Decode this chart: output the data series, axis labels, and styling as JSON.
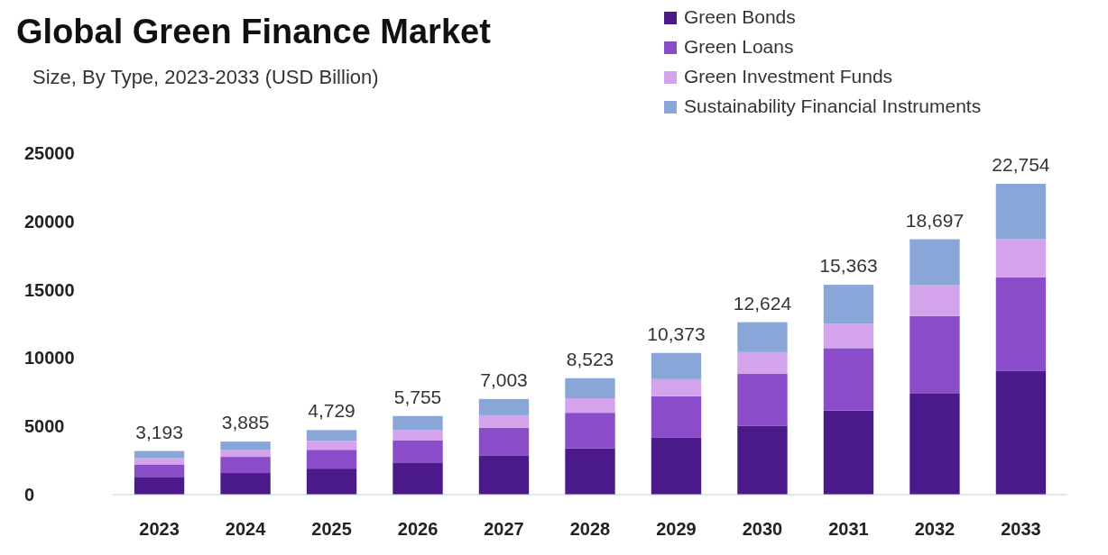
{
  "chart_data": {
    "type": "bar",
    "title": "Global Green Finance Market",
    "subtitle": "Size, By Type, 2023-2033 (USD Billion)",
    "categories": [
      "2023",
      "2024",
      "2025",
      "2026",
      "2027",
      "2028",
      "2029",
      "2030",
      "2031",
      "2032",
      "2033"
    ],
    "stacked": true,
    "legend": "top right",
    "grid": false,
    "ylim": [
      0,
      25000
    ],
    "yticks": [
      0,
      5000,
      10000,
      15000,
      20000,
      25000
    ],
    "totals": [
      "3,193",
      "3,885",
      "4,729",
      "5,755",
      "7,003",
      "8,523",
      "10,373",
      "12,624",
      "15,363",
      "18,697",
      "22,754"
    ],
    "series": [
      {
        "name": "Green Bonds",
        "color": "#4b1a8a",
        "values": [
          1303,
          1581,
          1904,
          2354,
          2841,
          3396,
          4162,
          5050,
          6158,
          7434,
          9080
        ]
      },
      {
        "name": "Green Loans",
        "color": "#8a4cc9",
        "values": [
          912,
          1185,
          1379,
          1635,
          2048,
          2596,
          3040,
          3787,
          4569,
          5642,
          6827
        ]
      },
      {
        "name": "Green Investment Funds",
        "color": "#d3a4ec",
        "values": [
          457,
          527,
          657,
          720,
          925,
          1066,
          1255,
          1595,
          1788,
          2256,
          2783
        ]
      },
      {
        "name": "Sustainability Financial Instruments",
        "color": "#8aa6d9",
        "values": [
          521,
          592,
          789,
          1046,
          1189,
          1465,
          1916,
          2192,
          2848,
          3365,
          4064
        ]
      }
    ]
  }
}
